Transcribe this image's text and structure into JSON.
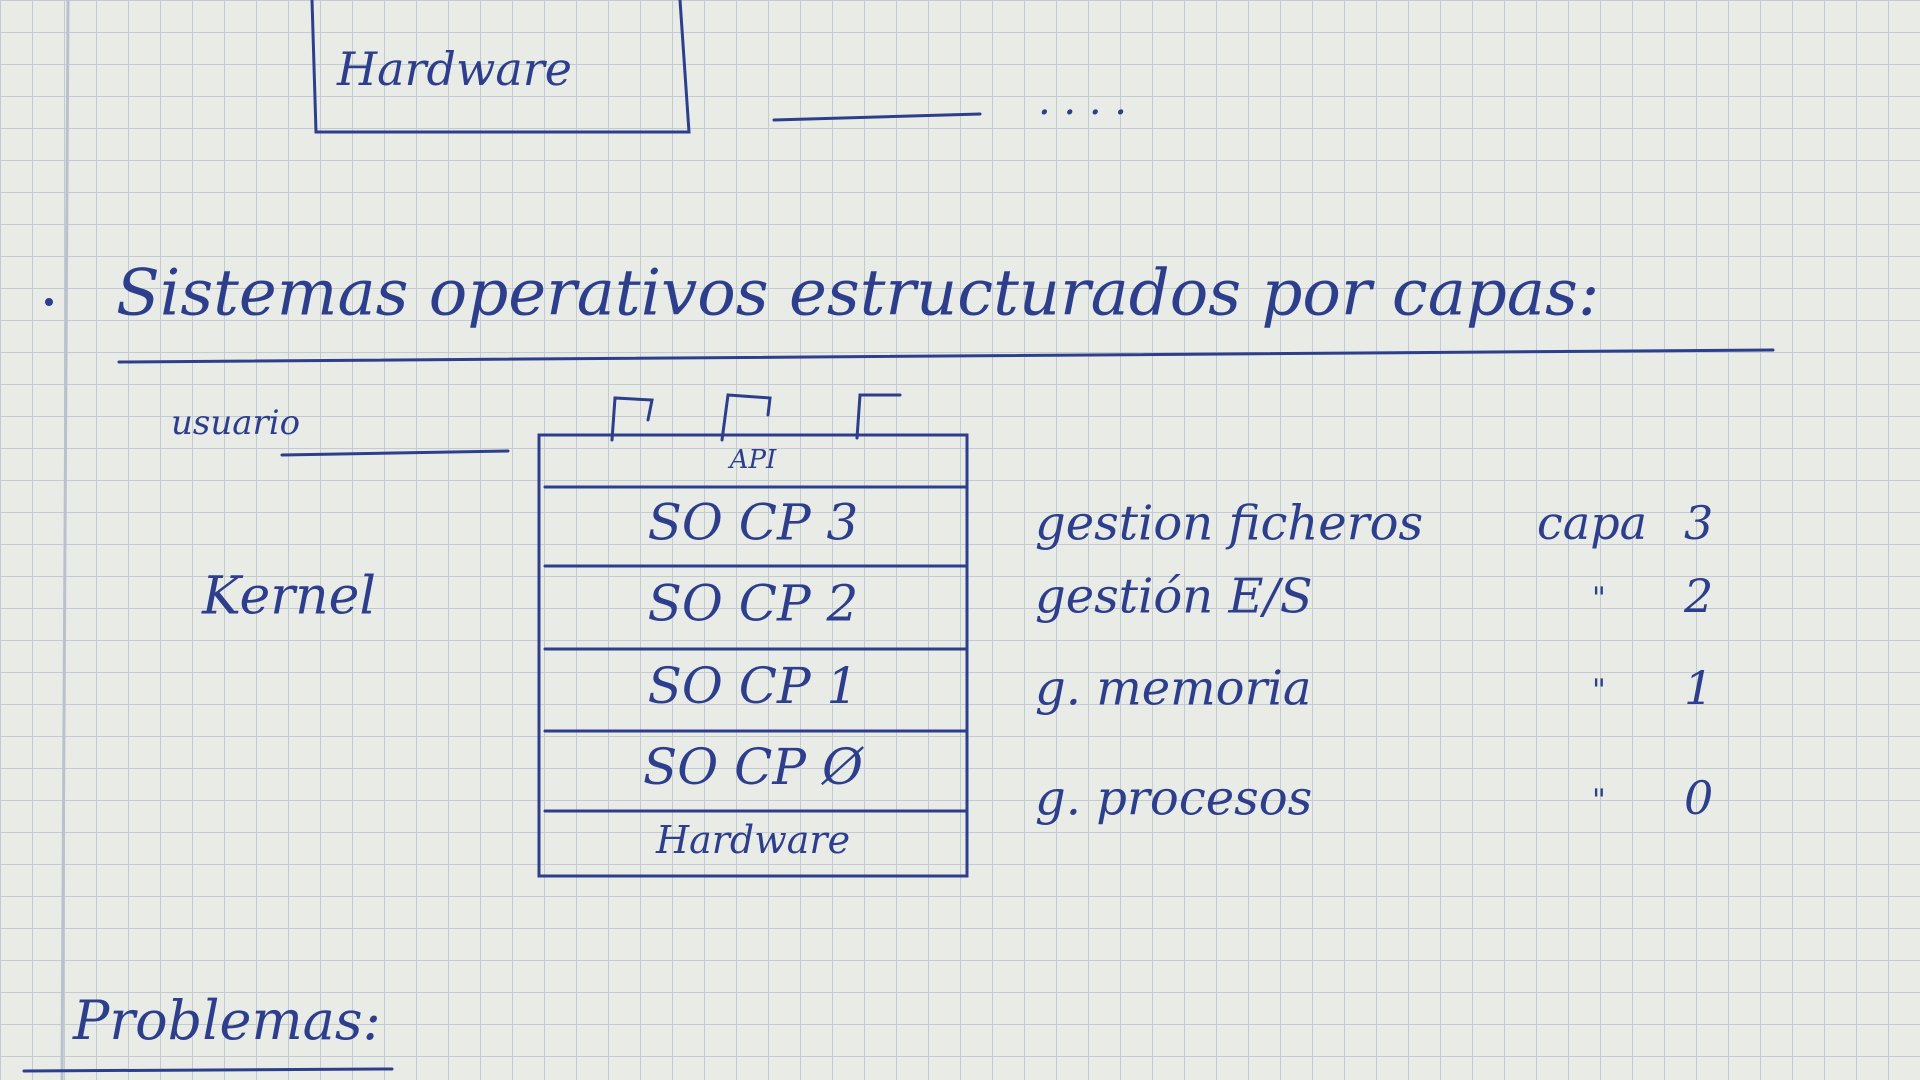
{
  "top": {
    "box_label": "Hardware",
    "ellipsis": ". . . ."
  },
  "heading": "Sistemas operativos estructurados por capas:",
  "user_label": "usuario",
  "kernel_label": "Kernel",
  "stack": {
    "layers": [
      "API",
      "SO CP 3",
      "SO CP 2",
      "SO CP 1",
      "SO CP Ø",
      "Hardware"
    ]
  },
  "descriptions": [
    {
      "label": "gestion ficheros",
      "prefix": "capa",
      "number": "3"
    },
    {
      "label": "gestión E/S",
      "prefix": "\"",
      "number": "2"
    },
    {
      "label": "g. memoria",
      "prefix": "\"",
      "number": "1"
    },
    {
      "label": "g. procesos",
      "prefix": "\"",
      "number": "0"
    }
  ],
  "footer": "Problemas:"
}
